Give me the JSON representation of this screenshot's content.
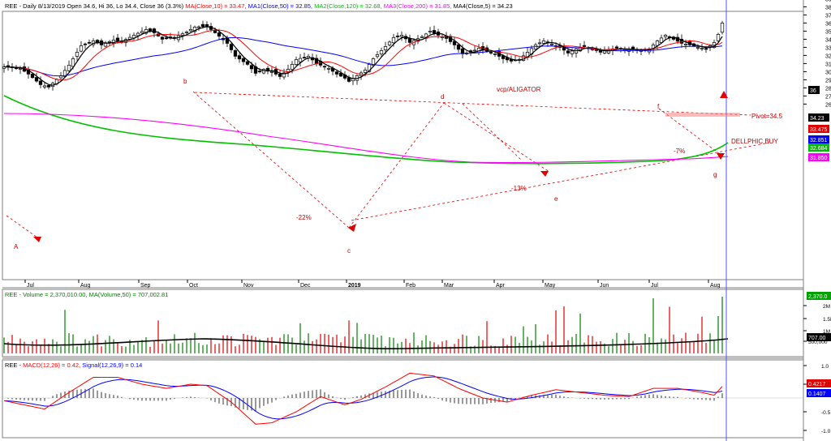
{
  "header": {
    "price_prefix": "REE - Daily 8/13/2019 Open 34.6, Hi 36, Lo 34.4, Close 36 (3.3%)",
    "ma10": "MA(Close,10) = 33.47,",
    "ma50": "MA1(Close,50) = 32.85,",
    "ma120": "MA2(Close,120) = 32.68,",
    "ma200": "MA3(Close,200) = 31.85,",
    "ma5": "MA4(Close,5) = 34.23",
    "volume": "REE - Volume = 2,370,010.00, MA(Volume,50) = 707,002.81",
    "macd_prefix": "REE -",
    "macd_line": "MACD(12,26) = 0.42,",
    "signal_line": "Signal(12,26,9) = 0.14"
  },
  "colors": {
    "ma10": "#ff0000",
    "ma50": "#0000ff",
    "ma120": "#00c000",
    "ma200": "#ff00ff",
    "ma5": "#000000",
    "bull": "#008000",
    "bear": "#e00000",
    "pane_border": "#7f7f7f",
    "background": "#ffffff",
    "cursor": "#5050ff"
  },
  "chart_data": [
    {
      "type": "candlestick",
      "title": "REE - Daily 8/13/2019",
      "months": [
        "Jul",
        "Aug",
        "Sep",
        "Oct",
        "Nov",
        "Dec",
        "2019",
        "Feb",
        "Mar",
        "Apr",
        "May",
        "Jun",
        "Jul",
        "Aug"
      ],
      "y_ticks": [
        26,
        27,
        28,
        29,
        30,
        31,
        32,
        33,
        34,
        35,
        36,
        37,
        38,
        39,
        40,
        41
      ],
      "ylim": [
        25.5,
        42
      ],
      "close_path": [
        [
          0,
          30.6
        ],
        [
          4,
          30.4
        ],
        [
          6,
          29.7
        ],
        [
          9,
          28.4
        ],
        [
          11,
          28.1
        ],
        [
          14,
          29.5
        ],
        [
          16,
          30.8
        ],
        [
          19,
          33.2
        ],
        [
          22,
          33.8
        ],
        [
          24,
          33.3
        ],
        [
          27,
          33.9
        ],
        [
          29,
          33.7
        ],
        [
          32,
          34.5
        ],
        [
          35,
          35.2
        ],
        [
          37,
          34.8
        ],
        [
          39,
          34.0
        ],
        [
          42,
          34.2
        ],
        [
          45,
          34.9
        ],
        [
          47,
          35.5
        ],
        [
          50,
          35.6
        ],
        [
          52,
          34.8
        ],
        [
          55,
          33.5
        ],
        [
          57,
          31.9
        ],
        [
          60,
          30.9
        ],
        [
          62,
          29.8
        ],
        [
          64,
          30.3
        ],
        [
          66,
          30.0
        ],
        [
          68,
          29.4
        ],
        [
          70,
          30.3
        ],
        [
          72,
          31.5
        ],
        [
          75,
          31.9
        ],
        [
          77,
          31.0
        ],
        [
          80,
          30.4
        ],
        [
          82,
          29.7
        ],
        [
          84,
          29.2
        ],
        [
          85,
          28.8
        ],
        [
          87,
          29.5
        ],
        [
          89,
          30.2
        ],
        [
          91,
          31.6
        ],
        [
          94,
          33.1
        ],
        [
          96,
          34.2
        ],
        [
          98,
          34.5
        ],
        [
          100,
          33.6
        ],
        [
          103,
          34.3
        ],
        [
          105,
          35.0
        ],
        [
          107,
          34.5
        ],
        [
          109,
          34.1
        ],
        [
          111,
          33.3
        ],
        [
          113,
          32.2
        ],
        [
          115,
          32.4
        ],
        [
          117,
          32.9
        ],
        [
          119,
          32.5
        ],
        [
          121,
          32.2
        ],
        [
          123,
          31.6
        ],
        [
          125,
          31.3
        ],
        [
          127,
          31.5
        ],
        [
          129,
          32.4
        ],
        [
          131,
          33.3
        ],
        [
          133,
          33.8
        ],
        [
          135,
          33.4
        ],
        [
          137,
          33.0
        ],
        [
          139,
          32.3
        ],
        [
          141,
          32.8
        ],
        [
          143,
          33.1
        ],
        [
          145,
          32.8
        ],
        [
          147,
          32.4
        ],
        [
          149,
          32.7
        ],
        [
          151,
          32.9
        ],
        [
          153,
          32.7
        ],
        [
          155,
          32.8
        ],
        [
          157,
          32.6
        ],
        [
          159,
          32.8
        ],
        [
          161,
          33.8
        ],
        [
          163,
          34.5
        ],
        [
          165,
          34.0
        ],
        [
          167,
          33.5
        ],
        [
          169,
          33.3
        ],
        [
          171,
          33.0
        ],
        [
          173,
          32.8
        ],
        [
          175,
          33.6
        ],
        [
          176,
          34.6
        ],
        [
          177,
          36.0
        ]
      ],
      "overlays": [
        {
          "name": "MA(Close,10)",
          "value": 33.47
        },
        {
          "name": "MA1(Close,50)",
          "value": 32.85
        },
        {
          "name": "MA2(Close,120)",
          "value": 32.68
        },
        {
          "name": "MA3(Close,200)",
          "value": 31.85
        },
        {
          "name": "MA4(Close,5)",
          "value": 34.23
        }
      ],
      "annotations": {
        "wave_labels": [
          "A",
          "b",
          "c",
          "d",
          "e",
          "f",
          "g"
        ],
        "percent_labels": [
          "-22%",
          "-13%",
          "-7%"
        ],
        "pattern_label": "vcp/ALIGATOR",
        "pivot_label": "Pivot=34.5",
        "signal_label": "DELLPHIC BUY"
      },
      "price_boxes": [
        "36",
        "34.23",
        "33.475",
        "32.851",
        "32.684",
        "31.850"
      ]
    },
    {
      "type": "bar",
      "title": "REE - Volume",
      "value": 2370010.0,
      "ma50": 707002.81,
      "y_ticks": [
        "2M",
        "1.5M",
        "1M",
        "500,000"
      ],
      "boxes": [
        "2,370.0",
        "707.00"
      ]
    },
    {
      "type": "line",
      "title": "REE - MACD(12,26)",
      "series": [
        {
          "name": "MACD(12,26)",
          "value": 0.42
        },
        {
          "name": "Signal(12,26,9)",
          "value": 0.14
        }
      ],
      "y_ticks": [
        "1.0",
        "0.5",
        "-0.5",
        "-1.0"
      ],
      "boxes": [
        "0.4217",
        "0.1407"
      ]
    }
  ]
}
